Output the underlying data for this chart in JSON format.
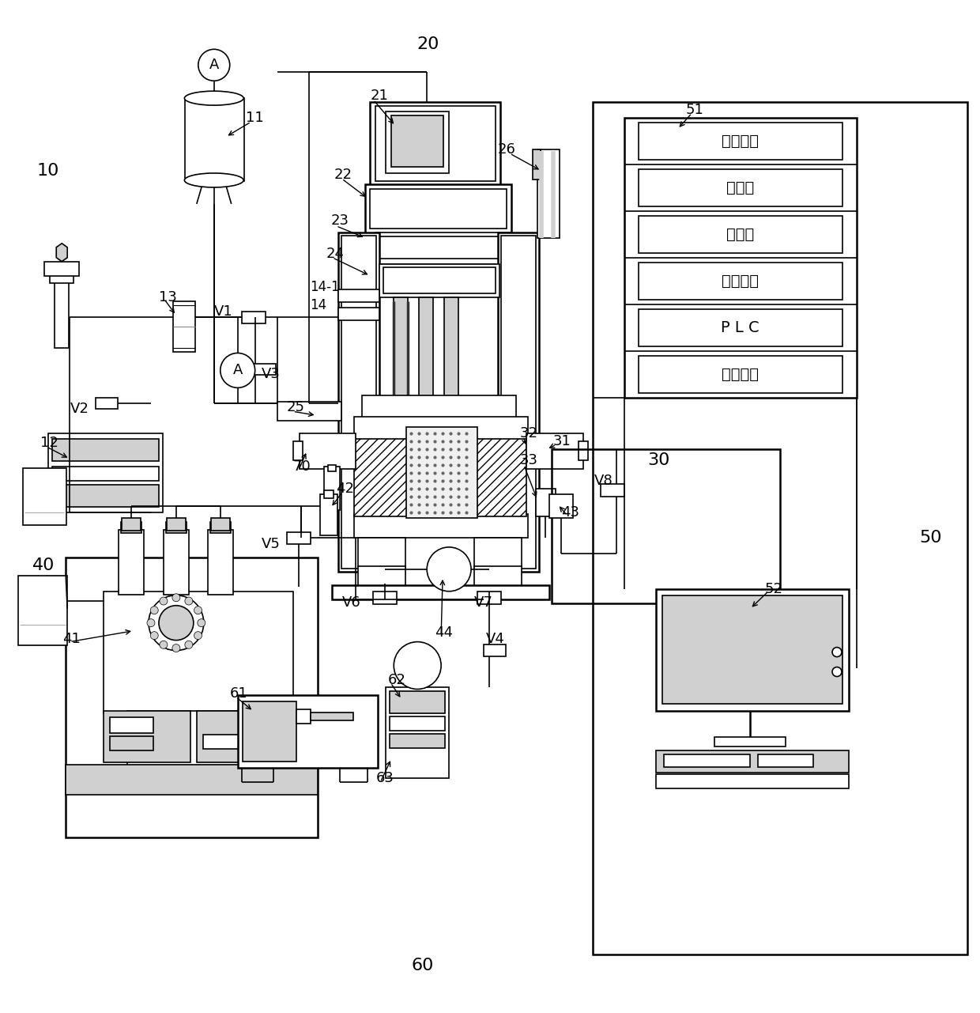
{
  "bg_color": "#ffffff",
  "line_color": "#000000",
  "gray_color": "#808080",
  "light_gray": "#d0d0d0",
  "control_rows": [
    "载荷通讯",
    "应变仪",
    "引伸计",
    "位移通讯",
    "P L C",
    "温度压力"
  ]
}
